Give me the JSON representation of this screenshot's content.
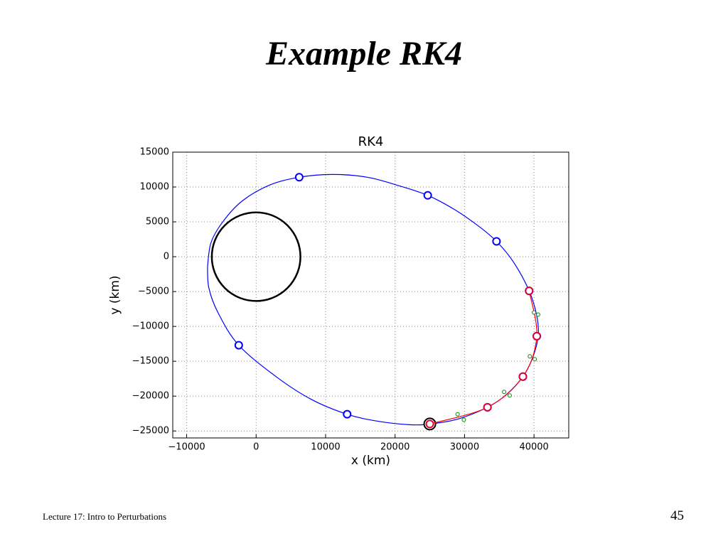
{
  "slide": {
    "title": "Example RK4",
    "footer": "Lecture 17: Intro to Perturbations",
    "page_number": 45
  },
  "chart_data": {
    "type": "line",
    "title": "RK4",
    "x_label": "x (km)",
    "y_label": "y (km)",
    "xlim": [
      -12000,
      45000
    ],
    "ylim": [
      -26000,
      15000
    ],
    "xticks": [
      {
        "value": -10000,
        "label": "−10000"
      },
      0,
      10000,
      20000,
      30000,
      40000
    ],
    "yticks": [
      {
        "value": -25000,
        "label": "−25000"
      },
      {
        "value": -20000,
        "label": "−20000"
      },
      {
        "value": -15000,
        "label": "−15000"
      },
      {
        "value": -10000,
        "label": "−10000"
      },
      {
        "value": -5000,
        "label": "−5000"
      },
      0,
      5000,
      10000,
      15000
    ],
    "grid": true,
    "circles": [
      {
        "x": 0,
        "y": 0,
        "r": 6378,
        "color": "#000000"
      }
    ],
    "series": [
      {
        "color": "#0000ff",
        "style": "line",
        "x": [
          -7000,
          -6500,
          -4800,
          -2000,
          2000,
          6200,
          11000,
          16000,
          20500,
          24700,
          28500,
          32000,
          34600,
          37000,
          39300,
          40400,
          40600,
          39800,
          38400,
          36000,
          33300,
          29000,
          25000,
          22000,
          17500,
          13100,
          8000,
          3000,
          -2500,
          -5500,
          -6800,
          -7000
        ],
        "values": [
          -1500,
          2000,
          5000,
          8000,
          10300,
          11400,
          11800,
          11400,
          10200,
          8800,
          6800,
          4400,
          2200,
          -700,
          -4900,
          -8500,
          -11400,
          -14500,
          -17200,
          -19800,
          -21600,
          -23300,
          -24000,
          -24100,
          -23600,
          -22600,
          -20500,
          -17300,
          -12700,
          -8000,
          -4500,
          -1500
        ]
      },
      {
        "color": "#0000ff",
        "style": "marker",
        "markersize": 10,
        "x": [
          6200,
          24700,
          34600,
          39300,
          40400,
          38400,
          33300,
          25000,
          13100,
          -2500
        ],
        "values": [
          11400,
          8800,
          2200,
          -4900,
          -11400,
          -17200,
          -21600,
          -24000,
          -22600,
          -12700
        ]
      },
      {
        "color": "#000000",
        "style": "marker",
        "markersize": 16,
        "x": [
          25000
        ],
        "values": [
          -24000
        ]
      },
      {
        "color": "#ff0000",
        "style": "line",
        "x": [
          39300,
          40400,
          38400,
          33300,
          25000
        ],
        "values": [
          -4900,
          -11400,
          -17200,
          -21600,
          -24000
        ]
      },
      {
        "color": "#dd0033",
        "style": "marker",
        "markersize": 10,
        "x": [
          39300,
          40400,
          38400,
          33300,
          25000
        ],
        "values": [
          -4900,
          -11400,
          -17200,
          -21600,
          -24000
        ]
      },
      {
        "color": "#008800",
        "style": "marker",
        "markersize": 5,
        "x": [
          40000,
          40600,
          39400,
          40100,
          35700,
          36500,
          29000,
          29900
        ],
        "values": [
          -8000,
          -8300,
          -14300,
          -14700,
          -19400,
          -19900,
          -22600,
          -23400
        ]
      }
    ]
  }
}
